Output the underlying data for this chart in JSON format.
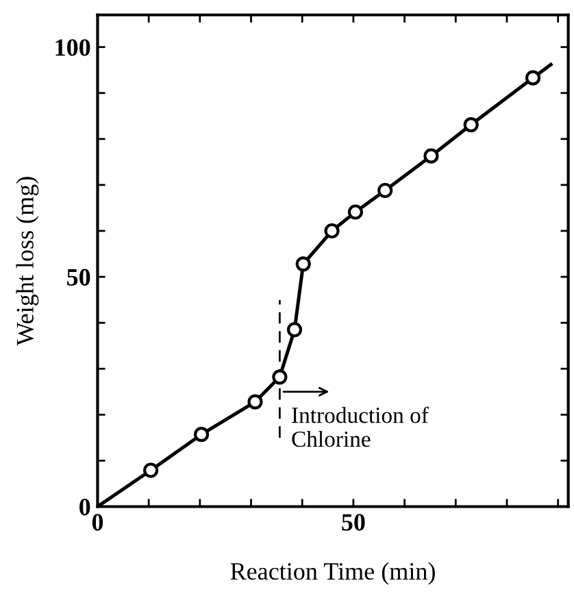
{
  "chart_data": {
    "type": "scatter",
    "xlabel": "Reaction Time (min)",
    "ylabel": "Weight loss (mg)",
    "xlim": [
      0,
      92
    ],
    "ylim": [
      0,
      107
    ],
    "xticks": [
      0,
      {
        "value": 10,
        "label": null
      },
      {
        "value": 20,
        "label": null
      },
      {
        "value": 30,
        "label": null
      },
      {
        "value": 40,
        "label": null
      },
      50,
      {
        "value": 60,
        "label": null
      },
      {
        "value": 70,
        "label": null
      },
      {
        "value": 80,
        "label": null
      },
      {
        "value": 90,
        "label": null
      }
    ],
    "yticks": [
      0,
      {
        "value": 10,
        "label": null
      },
      {
        "value": 20,
        "label": null
      },
      {
        "value": 30,
        "label": null
      },
      {
        "value": 40,
        "label": null
      },
      50,
      {
        "value": 60,
        "label": null
      },
      {
        "value": 70,
        "label": null
      },
      {
        "value": 80,
        "label": null
      },
      {
        "value": 90,
        "label": null
      },
      100
    ],
    "series": [
      {
        "type": "line",
        "color": "#000000",
        "marker": "none",
        "x": [
          0,
          10.4,
          20.3,
          30.8,
          35.6,
          38.5,
          40.2,
          45.8,
          50.4,
          56.2,
          65.2,
          73.0,
          85.1,
          88.6
        ],
        "values": [
          0,
          7.9,
          15.7,
          22.8,
          28.2,
          38.5,
          52.8,
          60.0,
          64.1,
          68.8,
          76.3,
          83.1,
          93.3,
          96.2
        ]
      },
      {
        "color": "#000000",
        "marker": "circle",
        "x": [
          10.4,
          20.3,
          30.8,
          35.6,
          38.5,
          40.2,
          45.8,
          50.4,
          56.2,
          65.2,
          73.0,
          85.1
        ],
        "values": [
          7.9,
          15.7,
          22.8,
          28.2,
          38.5,
          52.8,
          60.0,
          64.1,
          68.8,
          76.3,
          83.1,
          93.3
        ]
      }
    ],
    "ref_lines": [
      {
        "axis": "x",
        "value": 35.6,
        "line_style": "dashed",
        "color": "#000000"
      }
    ],
    "annotations": [
      {
        "text": "Introduction of\nChlorine",
        "x": 35.6,
        "y": 25
      }
    ],
    "grid": false,
    "legend": false
  }
}
